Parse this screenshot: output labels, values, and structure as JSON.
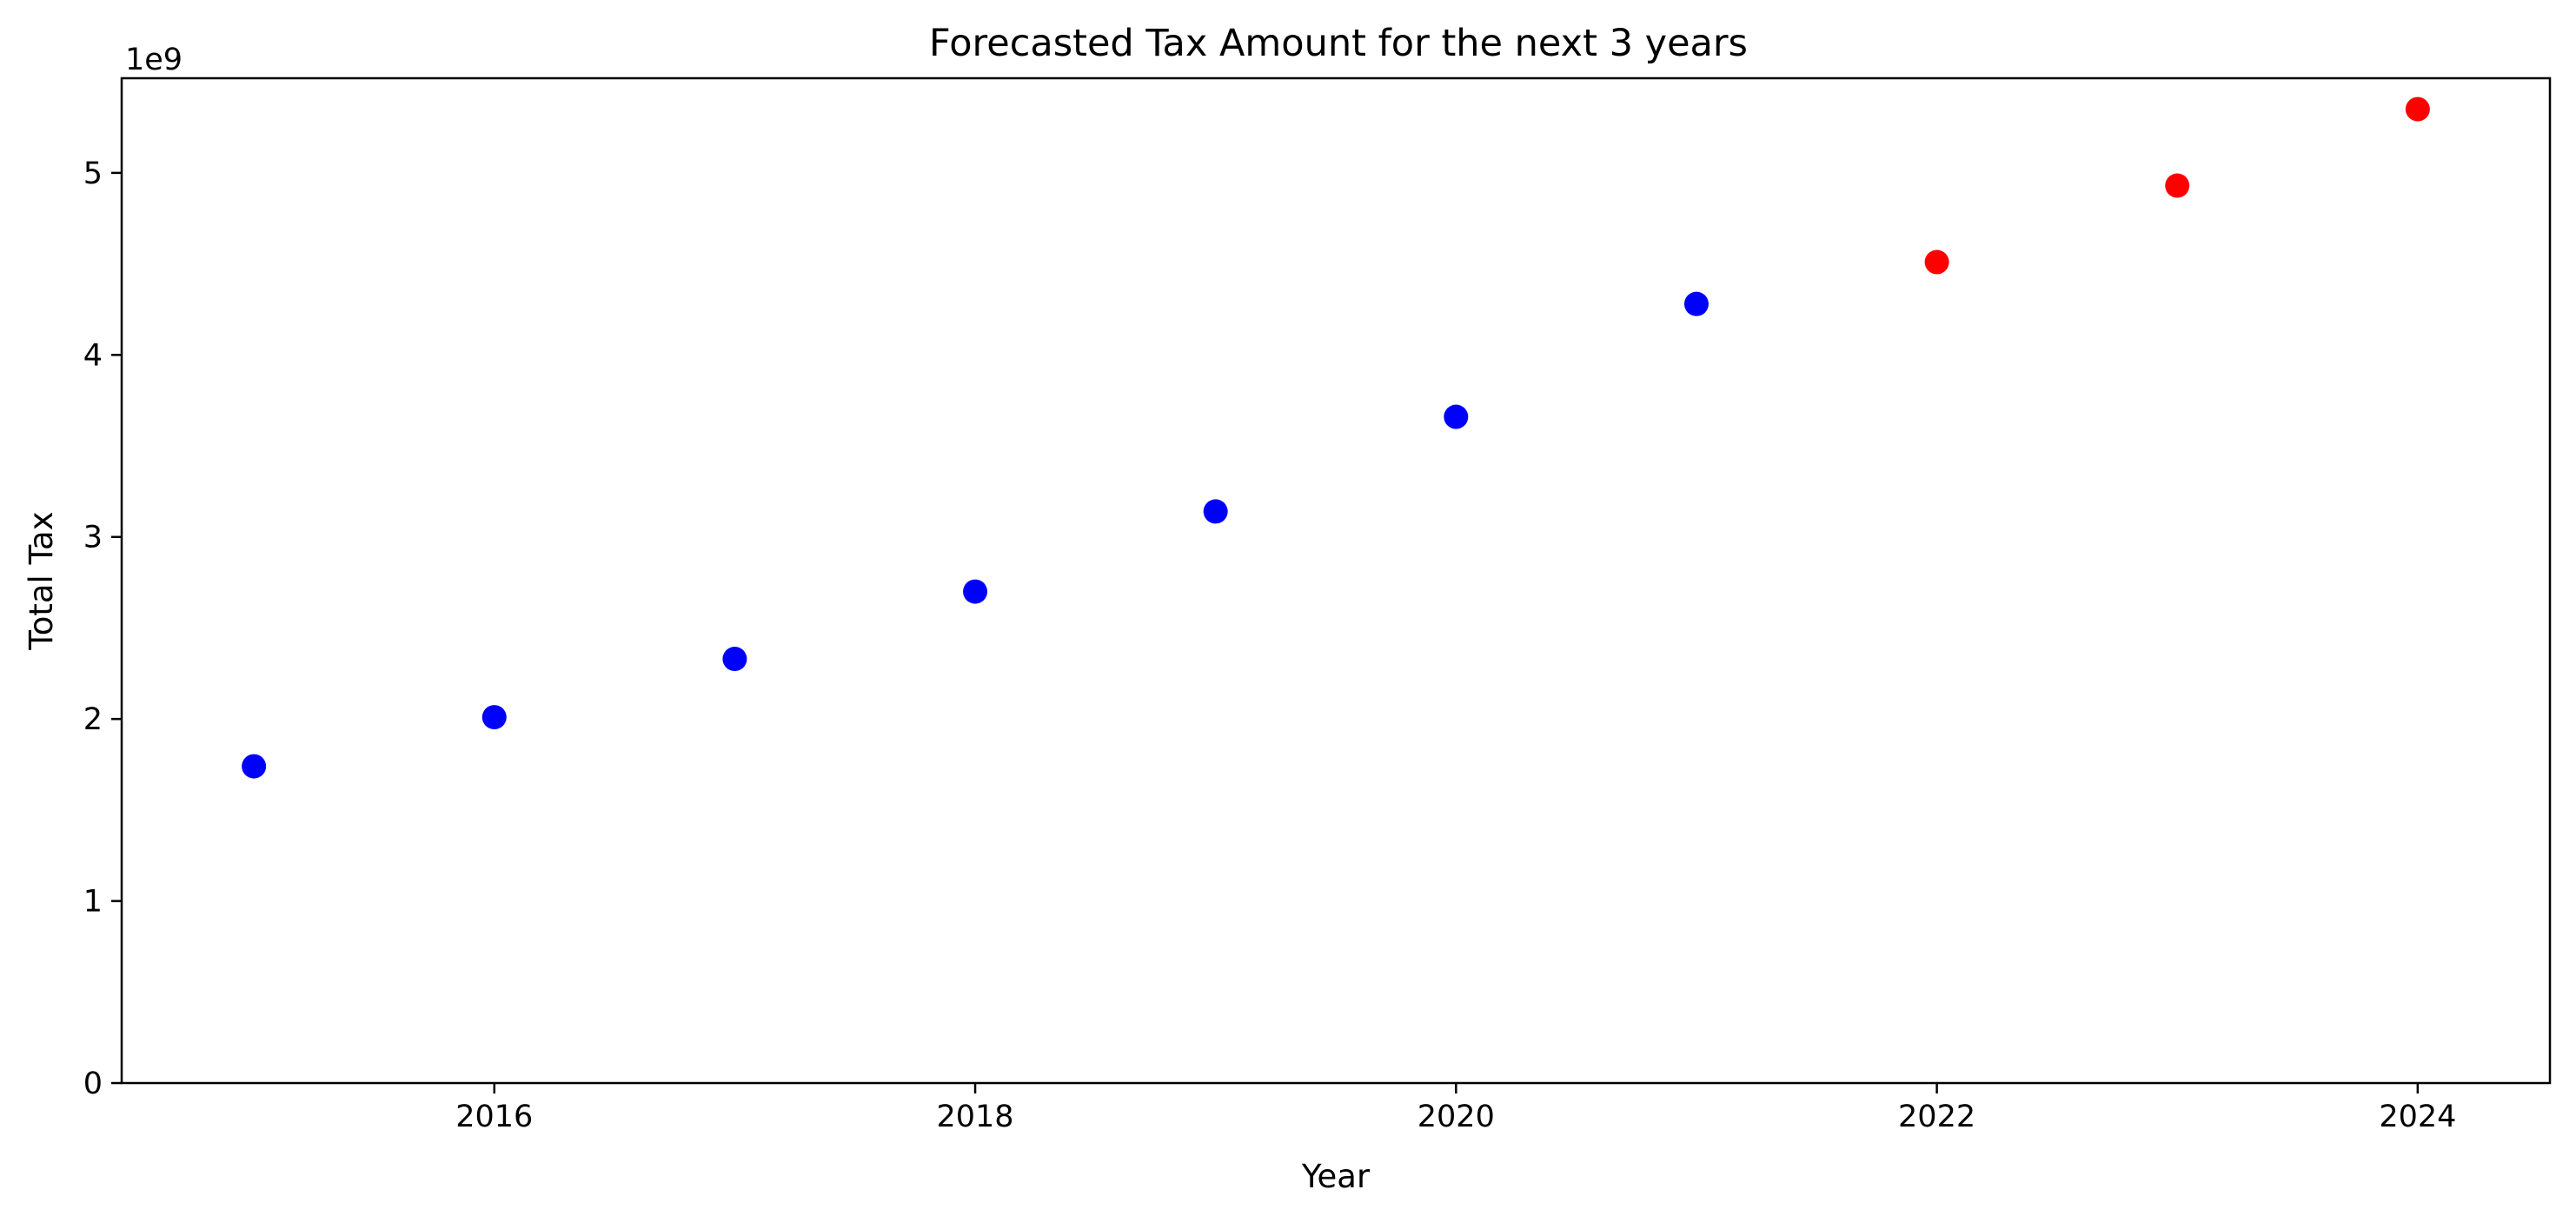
{
  "chart_data": {
    "type": "scatter",
    "title": "Forecasted Tax Amount for the next 3 years",
    "xlabel": "Year",
    "ylabel": "Total Tax",
    "y_offset_label": "1e9",
    "xlim": [
      2014.45,
      2024.55
    ],
    "ylim": [
      0,
      5.52
    ],
    "x_ticks": [
      2016,
      2018,
      2020,
      2022,
      2024
    ],
    "x_tick_labels": [
      "2016",
      "2018",
      "2020",
      "2022",
      "2024"
    ],
    "y_ticks": [
      0,
      1,
      2,
      3,
      4,
      5
    ],
    "y_tick_labels": [
      "0",
      "1",
      "2",
      "3",
      "4",
      "5"
    ],
    "grid": false,
    "legend": "none",
    "series": [
      {
        "color": "#0000ff",
        "x": [
          2015,
          2016,
          2017,
          2018,
          2019,
          2020,
          2021
        ],
        "y": [
          1.74,
          2.01,
          2.33,
          2.7,
          3.14,
          3.66,
          4.28
        ]
      },
      {
        "color": "#ff0000",
        "x": [
          2022,
          2023,
          2024
        ],
        "y": [
          4.51,
          4.93,
          5.35
        ]
      }
    ]
  }
}
